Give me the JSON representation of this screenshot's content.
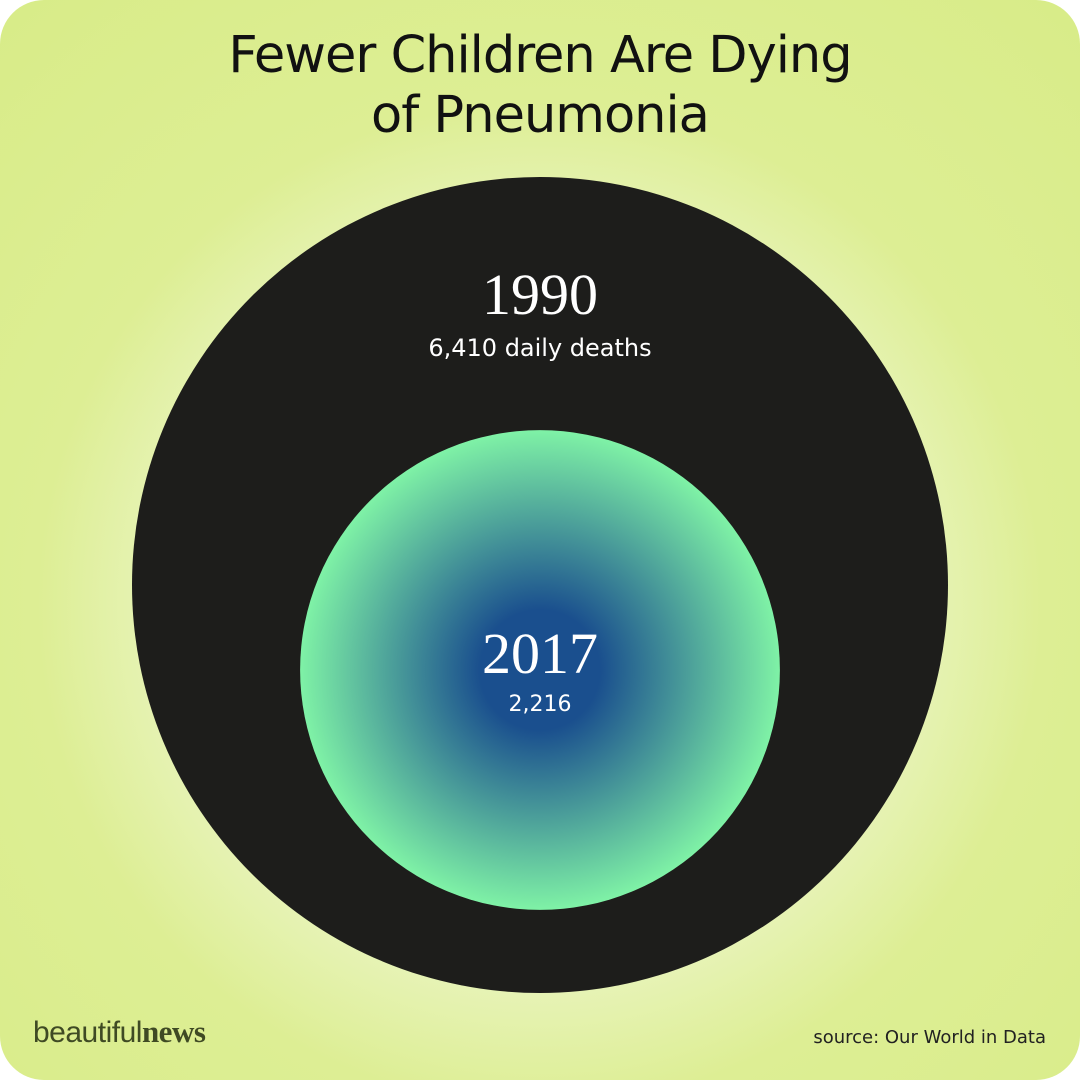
{
  "title_lines": [
    "Fewer Children Are Dying",
    "of Pneumonia"
  ],
  "chart_data": {
    "type": "proportional-area-circles",
    "unit": "daily deaths",
    "series": [
      {
        "year": "1990",
        "label": "6,410 daily deaths",
        "value": 6410,
        "color": "#1d1d1b"
      },
      {
        "year": "2017",
        "label": "2,216",
        "value": 2216,
        "color_center": "#1a4f8e",
        "color_edge": "#7ff2a6"
      }
    ]
  },
  "footer": {
    "brand_regular": "beautiful",
    "brand_bold": "news",
    "source": "source: Our World in Data"
  }
}
